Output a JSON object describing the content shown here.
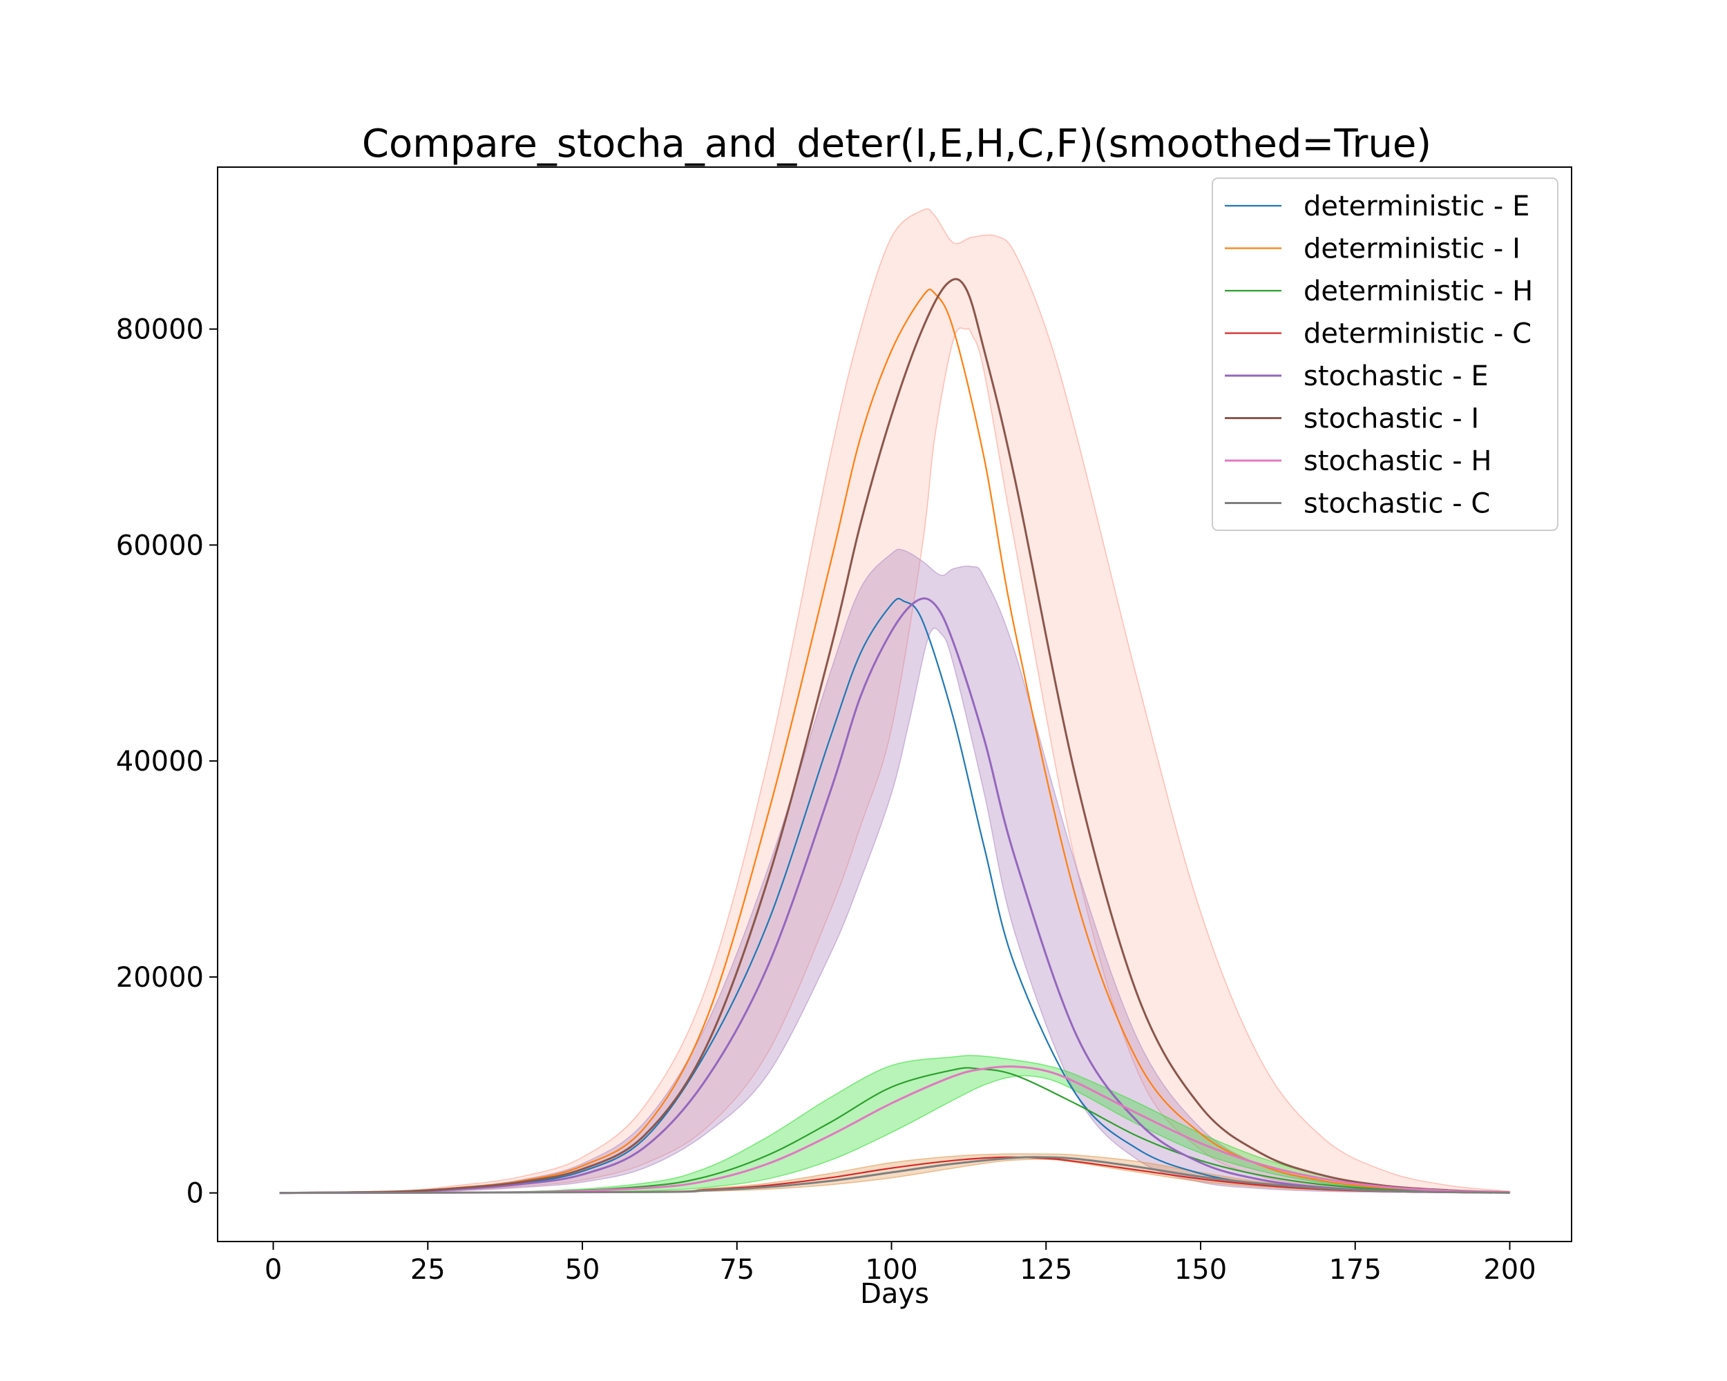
{
  "chart_data": {
    "type": "line",
    "title": "Compare_stocha_and_deter(I,E,H,C,F)(smoothed=True)",
    "xlabel": "Days",
    "ylabel": "",
    "xlim": [
      -9,
      210
    ],
    "ylim": [
      -4500,
      95000
    ],
    "xticks": [
      0,
      25,
      50,
      75,
      100,
      125,
      150,
      175,
      200
    ],
    "yticks": [
      0,
      20000,
      40000,
      60000,
      80000
    ],
    "grid": false,
    "legend_position": "top-right",
    "series": [
      {
        "name": "deterministic - E",
        "color": "#1f77b4",
        "x": [
          1,
          20,
          30,
          40,
          50,
          60,
          70,
          80,
          90,
          95,
          100,
          102,
          105,
          110,
          115,
          120,
          130,
          140,
          150,
          160,
          170,
          180,
          190,
          200
        ],
        "y": [
          0,
          100,
          400,
          900,
          2000,
          5000,
          13000,
          25000,
          42000,
          50000,
          54500,
          54800,
          53000,
          44000,
          32000,
          21000,
          9000,
          4000,
          1800,
          800,
          350,
          150,
          60,
          20
        ]
      },
      {
        "name": "deterministic - I",
        "color": "#ff7f0e",
        "x": [
          1,
          20,
          30,
          40,
          50,
          60,
          70,
          80,
          90,
          95,
          100,
          105,
          107,
          110,
          115,
          120,
          130,
          140,
          150,
          160,
          170,
          180,
          190,
          200
        ],
        "y": [
          0,
          150,
          500,
          1100,
          2500,
          6000,
          16000,
          35000,
          58000,
          70000,
          78000,
          83000,
          83300,
          80000,
          68000,
          52000,
          27000,
          12000,
          5500,
          2500,
          1100,
          450,
          150,
          40
        ]
      },
      {
        "name": "deterministic - H",
        "color": "#2ca02c",
        "x": [
          1,
          40,
          60,
          70,
          80,
          90,
          100,
          110,
          114,
          120,
          130,
          140,
          150,
          160,
          170,
          180,
          190,
          200
        ],
        "y": [
          0,
          80,
          600,
          1500,
          3500,
          6500,
          9800,
          11400,
          11500,
          10900,
          8200,
          5200,
          3000,
          1600,
          750,
          320,
          120,
          30
        ]
      },
      {
        "name": "deterministic - C",
        "color": "#d62728",
        "x": [
          1,
          60,
          70,
          80,
          90,
          100,
          110,
          118,
          125,
          130,
          140,
          150,
          160,
          170,
          180,
          190,
          200
        ],
        "y": [
          0,
          100,
          300,
          700,
          1400,
          2300,
          3000,
          3300,
          3200,
          2900,
          2100,
          1300,
          700,
          320,
          140,
          50,
          10
        ]
      },
      {
        "name": "stochastic - E",
        "color": "#9467bd",
        "x": [
          1,
          20,
          30,
          40,
          50,
          60,
          70,
          80,
          90,
          95,
          100,
          104,
          107,
          110,
          115,
          120,
          130,
          140,
          150,
          160,
          170,
          180,
          190,
          200
        ],
        "y": [
          0,
          90,
          350,
          800,
          1700,
          4200,
          10500,
          21000,
          37000,
          46000,
          52000,
          54800,
          54500,
          51000,
          42000,
          31000,
          14500,
          6500,
          2800,
          1200,
          500,
          200,
          80,
          20
        ]
      },
      {
        "name": "stochastic - I",
        "color": "#8c564b",
        "x": [
          1,
          20,
          30,
          40,
          50,
          60,
          70,
          80,
          90,
          95,
          100,
          105,
          109,
          112,
          115,
          120,
          130,
          140,
          150,
          160,
          170,
          180,
          190,
          200
        ],
        "y": [
          0,
          120,
          450,
          1000,
          2200,
          5300,
          13500,
          29000,
          50000,
          62000,
          72000,
          80000,
          84200,
          83800,
          78000,
          66000,
          38000,
          18000,
          8000,
          3600,
          1600,
          650,
          250,
          60
        ]
      },
      {
        "name": "stochastic - H",
        "color": "#e377c2",
        "x": [
          1,
          40,
          60,
          70,
          80,
          90,
          100,
          110,
          115,
          120,
          125,
          130,
          140,
          150,
          160,
          170,
          180,
          190,
          200
        ],
        "y": [
          0,
          60,
          450,
          1100,
          2700,
          5300,
          8300,
          10800,
          11500,
          11700,
          11300,
          10200,
          7300,
          4600,
          2600,
          1300,
          550,
          200,
          50
        ]
      },
      {
        "name": "stochastic - C",
        "color": "#7f7f7f",
        "x": [
          1,
          60,
          70,
          80,
          90,
          100,
          110,
          120,
          125,
          130,
          140,
          150,
          160,
          170,
          180,
          190,
          200
        ],
        "y": [
          0,
          80,
          230,
          550,
          1100,
          1900,
          2700,
          3250,
          3300,
          3150,
          2400,
          1500,
          850,
          420,
          180,
          70,
          15
        ]
      }
    ],
    "bands": [
      {
        "color": "#ff9988",
        "fill_opacity": 0.22,
        "upper_x": [
          1,
          20,
          30,
          40,
          50,
          60,
          70,
          80,
          90,
          95,
          100,
          105,
          107,
          110,
          113,
          117,
          120,
          125,
          130,
          140,
          150,
          160,
          170,
          180,
          190,
          200
        ],
        "upper_y": [
          0,
          200,
          700,
          1500,
          3300,
          8000,
          19000,
          40000,
          68000,
          80000,
          88500,
          91000,
          90500,
          88000,
          88500,
          88600,
          87000,
          80000,
          70000,
          47000,
          26000,
          12000,
          5000,
          2000,
          700,
          150
        ],
        "lower_x": [
          1,
          20,
          30,
          40,
          50,
          60,
          70,
          80,
          90,
          95,
          100,
          105,
          107,
          110,
          112,
          113,
          115,
          120,
          130,
          140,
          150,
          160,
          170,
          180,
          190,
          200
        ],
        "lower_y": [
          0,
          80,
          250,
          600,
          1200,
          2700,
          6000,
          13000,
          26000,
          34000,
          43000,
          60000,
          70000,
          79000,
          80000,
          79500,
          76000,
          60000,
          30000,
          11000,
          4000,
          1500,
          600,
          250,
          80,
          20
        ]
      },
      {
        "name": "stochastic - E band",
        "color": "#b38fc4",
        "fill_opacity": 0.4,
        "upper_x": [
          1,
          20,
          30,
          40,
          50,
          60,
          70,
          80,
          90,
          95,
          100,
          102,
          105,
          108,
          110,
          113,
          115,
          120,
          130,
          140,
          150,
          160,
          170,
          180,
          190,
          200
        ],
        "upper_y": [
          0,
          150,
          500,
          1200,
          2700,
          6500,
          15500,
          30000,
          48000,
          56000,
          59200,
          59500,
          58500,
          57200,
          57800,
          58000,
          57000,
          50000,
          30000,
          14000,
          6000,
          2500,
          1000,
          400,
          150,
          40
        ],
        "lower_x": [
          1,
          20,
          30,
          40,
          50,
          60,
          70,
          80,
          90,
          95,
          100,
          103,
          106,
          108,
          110,
          115,
          120,
          130,
          140,
          150,
          160,
          170,
          180,
          190,
          200
        ],
        "lower_y": [
          0,
          50,
          200,
          500,
          1000,
          2300,
          5500,
          11000,
          22000,
          29000,
          37000,
          44000,
          51500,
          51800,
          49000,
          37000,
          24000,
          9000,
          3000,
          1000,
          400,
          150,
          60,
          20,
          5
        ]
      },
      {
        "color": "#33dd33",
        "fill_opacity": 0.35,
        "upper_x": [
          1,
          40,
          60,
          70,
          80,
          90,
          100,
          110,
          114,
          120,
          125,
          130,
          140,
          150,
          160,
          170,
          180,
          190,
          200
        ],
        "upper_y": [
          0,
          120,
          900,
          2300,
          5200,
          8800,
          11800,
          12600,
          12700,
          12300,
          11800,
          10900,
          8300,
          5500,
          3200,
          1600,
          700,
          250,
          60
        ],
        "lower_x": [
          1,
          40,
          60,
          70,
          80,
          90,
          100,
          110,
          115,
          120,
          125,
          130,
          140,
          150,
          160,
          170,
          180,
          190,
          200
        ],
        "lower_y": [
          0,
          30,
          200,
          500,
          1300,
          3000,
          5600,
          8600,
          10000,
          10800,
          10600,
          9400,
          6300,
          3700,
          2000,
          900,
          380,
          130,
          30
        ]
      },
      {
        "color": "#e09850",
        "fill_opacity": 0.35,
        "upper_x": [
          1,
          60,
          70,
          80,
          90,
          100,
          110,
          118,
          125,
          130,
          140,
          150,
          160,
          170,
          180,
          190,
          200
        ],
        "upper_y": [
          0,
          140,
          400,
          900,
          1800,
          2800,
          3400,
          3600,
          3600,
          3500,
          2900,
          1900,
          1000,
          480,
          200,
          70,
          15
        ],
        "lower_x": [
          1,
          60,
          70,
          80,
          90,
          100,
          110,
          118,
          125,
          130,
          140,
          150,
          160,
          170,
          180,
          190,
          200
        ],
        "lower_y": [
          0,
          50,
          150,
          350,
          750,
          1400,
          2300,
          2950,
          3100,
          2800,
          1900,
          1050,
          550,
          260,
          110,
          40,
          10
        ]
      }
    ]
  }
}
